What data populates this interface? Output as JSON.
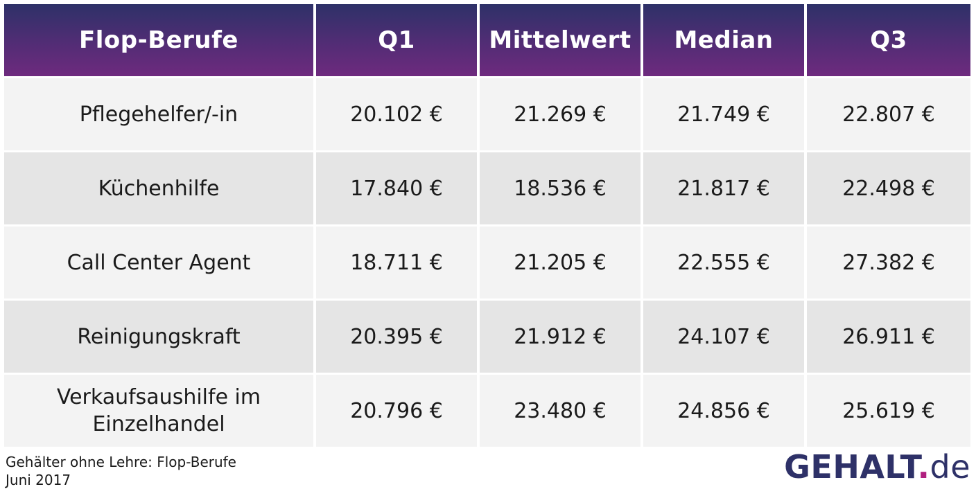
{
  "chart_data": {
    "type": "table",
    "columns": [
      "Flop-Berufe",
      "Q1",
      "Mittelwert",
      "Median",
      "Q3"
    ],
    "rows": [
      [
        "Pflegehelfer/-in",
        "20.102 €",
        "21.269 €",
        "21.749 €",
        "22.807 €"
      ],
      [
        "Küchenhilfe",
        "17.840 €",
        "18.536 €",
        "21.817 €",
        "22.498 €"
      ],
      [
        "Call Center Agent",
        "18.711 €",
        "21.205 €",
        "22.555 €",
        "27.382 €"
      ],
      [
        "Reinigungskraft",
        "20.395 €",
        "21.912 €",
        "24.107 €",
        "26.911 €"
      ],
      [
        "Verkaufsaushilfe im Einzelhandel",
        "20.796 €",
        "23.480 €",
        "24.856 €",
        "25.619 €"
      ]
    ]
  },
  "caption": {
    "line1": "Gehälter ohne Lehre: Flop-Berufe",
    "line2": "Juni 2017"
  },
  "logo": {
    "name": "GEHALT",
    "dot": ".",
    "tld": "de"
  },
  "colors": {
    "header_top": "#2e3168",
    "header_bottom": "#6e2a7e",
    "row_light": "#f3f3f3",
    "row_dark": "#e5e5e5",
    "logo_dot": "#b0207f"
  }
}
